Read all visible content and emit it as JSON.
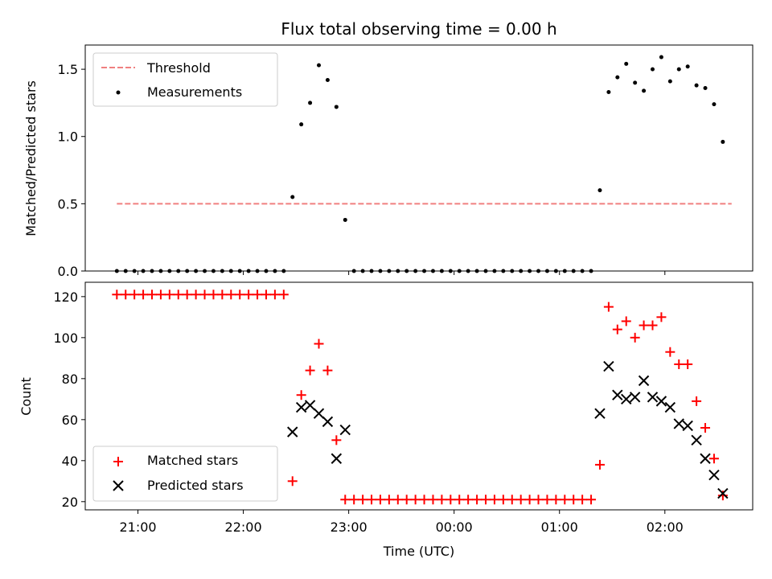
{
  "figure": {
    "title": "Flux total observing time = 0.00 h",
    "xlabel": "Time (UTC)"
  },
  "chart_data": [
    {
      "type": "scatter",
      "ylabel": "Matched/Predicted stars",
      "ylim": [
        0,
        1.68
      ],
      "xlim": [
        "20:30",
        "02:50"
      ],
      "yticks": [
        "0.0",
        "0.5",
        "1.0",
        "1.5"
      ],
      "ytick_values": [
        0,
        0.5,
        1.0,
        1.5
      ],
      "legend_location": "top-left",
      "threshold": {
        "name": "Threshold",
        "value": 0.5,
        "x_range": [
          "20:48",
          "02:38"
        ],
        "color": "#f08080"
      },
      "series": [
        {
          "name": "Measurements",
          "color": "#000000",
          "points": [
            [
              "20:48",
              0
            ],
            [
              "20:53",
              0
            ],
            [
              "20:58",
              0
            ],
            [
              "21:03",
              0
            ],
            [
              "21:08",
              0
            ],
            [
              "21:13",
              0
            ],
            [
              "21:18",
              0
            ],
            [
              "21:23",
              0
            ],
            [
              "21:28",
              0
            ],
            [
              "21:33",
              0
            ],
            [
              "21:38",
              0
            ],
            [
              "21:43",
              0
            ],
            [
              "21:48",
              0
            ],
            [
              "21:53",
              0
            ],
            [
              "21:58",
              0
            ],
            [
              "22:03",
              0
            ],
            [
              "22:08",
              0
            ],
            [
              "22:13",
              0
            ],
            [
              "22:18",
              0
            ],
            [
              "22:23",
              0
            ],
            [
              "22:28",
              0.55
            ],
            [
              "22:33",
              1.09
            ],
            [
              "22:38",
              1.25
            ],
            [
              "22:43",
              1.53
            ],
            [
              "22:48",
              1.42
            ],
            [
              "22:53",
              1.22
            ],
            [
              "22:58",
              0.38
            ],
            [
              "23:03",
              0
            ],
            [
              "23:08",
              0
            ],
            [
              "23:13",
              0
            ],
            [
              "23:18",
              0
            ],
            [
              "23:23",
              0
            ],
            [
              "23:28",
              0
            ],
            [
              "23:33",
              0
            ],
            [
              "23:38",
              0
            ],
            [
              "23:43",
              0
            ],
            [
              "23:48",
              0
            ],
            [
              "23:53",
              0
            ],
            [
              "23:58",
              0
            ],
            [
              "00:03",
              0
            ],
            [
              "00:08",
              0
            ],
            [
              "00:13",
              0
            ],
            [
              "00:18",
              0
            ],
            [
              "00:23",
              0
            ],
            [
              "00:28",
              0
            ],
            [
              "00:33",
              0
            ],
            [
              "00:38",
              0
            ],
            [
              "00:43",
              0
            ],
            [
              "00:48",
              0
            ],
            [
              "00:53",
              0
            ],
            [
              "00:58",
              0
            ],
            [
              "01:03",
              0
            ],
            [
              "01:08",
              0
            ],
            [
              "01:13",
              0
            ],
            [
              "01:18",
              0
            ],
            [
              "01:23",
              0.6
            ],
            [
              "01:28",
              1.33
            ],
            [
              "01:33",
              1.44
            ],
            [
              "01:38",
              1.54
            ],
            [
              "01:43",
              1.4
            ],
            [
              "01:48",
              1.34
            ],
            [
              "01:53",
              1.5
            ],
            [
              "01:58",
              1.59
            ],
            [
              "02:03",
              1.41
            ],
            [
              "02:08",
              1.5
            ],
            [
              "02:13",
              1.52
            ],
            [
              "02:18",
              1.38
            ],
            [
              "02:23",
              1.36
            ],
            [
              "02:28",
              1.24
            ],
            [
              "02:33",
              0.96
            ]
          ]
        }
      ]
    },
    {
      "type": "scatter",
      "ylabel": "Count",
      "ylim": [
        16,
        127
      ],
      "xlim": [
        "20:30",
        "02:50"
      ],
      "yticks": [
        "20",
        "40",
        "60",
        "80",
        "100",
        "120"
      ],
      "ytick_values": [
        20,
        40,
        60,
        80,
        100,
        120
      ],
      "xticks": [
        "21:00",
        "22:00",
        "23:00",
        "00:00",
        "01:00",
        "02:00"
      ],
      "legend_location": "bottom-left",
      "series": [
        {
          "name": "Matched stars",
          "marker": "plus",
          "color": "#ff0000",
          "points": [
            [
              "20:48",
              121
            ],
            [
              "20:53",
              121
            ],
            [
              "20:58",
              121
            ],
            [
              "21:03",
              121
            ],
            [
              "21:08",
              121
            ],
            [
              "21:13",
              121
            ],
            [
              "21:18",
              121
            ],
            [
              "21:23",
              121
            ],
            [
              "21:28",
              121
            ],
            [
              "21:33",
              121
            ],
            [
              "21:38",
              121
            ],
            [
              "21:43",
              121
            ],
            [
              "21:48",
              121
            ],
            [
              "21:53",
              121
            ],
            [
              "21:58",
              121
            ],
            [
              "22:03",
              121
            ],
            [
              "22:08",
              121
            ],
            [
              "22:13",
              121
            ],
            [
              "22:18",
              121
            ],
            [
              "22:23",
              121
            ],
            [
              "22:28",
              30
            ],
            [
              "22:33",
              72
            ],
            [
              "22:38",
              84
            ],
            [
              "22:43",
              97
            ],
            [
              "22:48",
              84
            ],
            [
              "22:53",
              50
            ],
            [
              "22:58",
              21
            ],
            [
              "23:03",
              21
            ],
            [
              "23:08",
              21
            ],
            [
              "23:13",
              21
            ],
            [
              "23:18",
              21
            ],
            [
              "23:23",
              21
            ],
            [
              "23:28",
              21
            ],
            [
              "23:33",
              21
            ],
            [
              "23:38",
              21
            ],
            [
              "23:43",
              21
            ],
            [
              "23:48",
              21
            ],
            [
              "23:53",
              21
            ],
            [
              "23:58",
              21
            ],
            [
              "00:03",
              21
            ],
            [
              "00:08",
              21
            ],
            [
              "00:13",
              21
            ],
            [
              "00:18",
              21
            ],
            [
              "00:23",
              21
            ],
            [
              "00:28",
              21
            ],
            [
              "00:33",
              21
            ],
            [
              "00:38",
              21
            ],
            [
              "00:43",
              21
            ],
            [
              "00:48",
              21
            ],
            [
              "00:53",
              21
            ],
            [
              "00:58",
              21
            ],
            [
              "01:03",
              21
            ],
            [
              "01:08",
              21
            ],
            [
              "01:13",
              21
            ],
            [
              "01:18",
              21
            ],
            [
              "01:23",
              38
            ],
            [
              "01:28",
              115
            ],
            [
              "01:33",
              104
            ],
            [
              "01:38",
              108
            ],
            [
              "01:43",
              100
            ],
            [
              "01:48",
              106
            ],
            [
              "01:53",
              106
            ],
            [
              "01:58",
              110
            ],
            [
              "02:03",
              93
            ],
            [
              "02:08",
              87
            ],
            [
              "02:13",
              87
            ],
            [
              "02:18",
              69
            ],
            [
              "02:23",
              56
            ],
            [
              "02:28",
              41
            ],
            [
              "02:33",
              23
            ]
          ]
        },
        {
          "name": "Predicted stars",
          "marker": "x",
          "color": "#000000",
          "points": [
            [
              "22:28",
              54
            ],
            [
              "22:33",
              66
            ],
            [
              "22:38",
              67
            ],
            [
              "22:43",
              63
            ],
            [
              "22:48",
              59
            ],
            [
              "22:53",
              41
            ],
            [
              "22:58",
              55
            ],
            [
              "01:23",
              63
            ],
            [
              "01:28",
              86
            ],
            [
              "01:33",
              72
            ],
            [
              "01:38",
              70
            ],
            [
              "01:43",
              71
            ],
            [
              "01:48",
              79
            ],
            [
              "01:53",
              71
            ],
            [
              "01:58",
              69
            ],
            [
              "02:03",
              66
            ],
            [
              "02:08",
              58
            ],
            [
              "02:13",
              57
            ],
            [
              "02:18",
              50
            ],
            [
              "02:23",
              41
            ],
            [
              "02:28",
              33
            ],
            [
              "02:33",
              24
            ]
          ]
        }
      ]
    }
  ]
}
